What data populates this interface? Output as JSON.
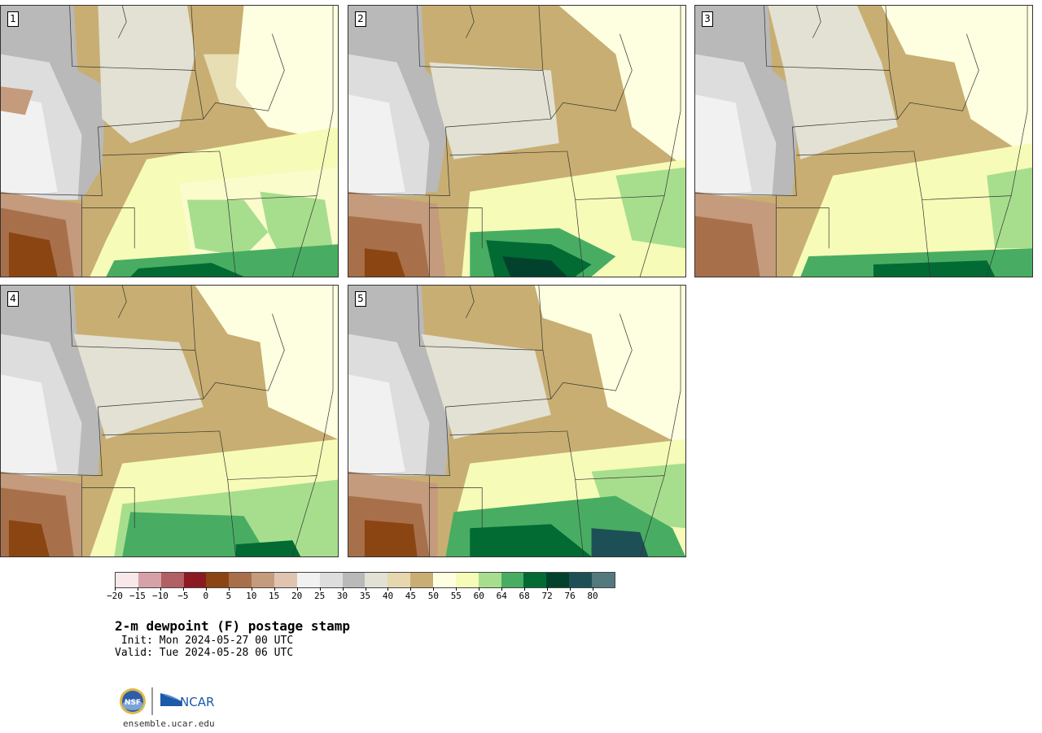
{
  "panels": [
    {
      "label": "1"
    },
    {
      "label": "2"
    },
    {
      "label": "3"
    },
    {
      "label": "4"
    },
    {
      "label": "5"
    }
  ],
  "colorbar": {
    "colors": [
      "#f7e8ea",
      "#d6a2a8",
      "#b35f66",
      "#8b1a23",
      "#8b4513",
      "#a8704a",
      "#c49b7c",
      "#e0c4b0",
      "#f1f1f1",
      "#dddddd",
      "#b9b9b9",
      "#e2e1d3",
      "#e6d7ae",
      "#c8ae72",
      "#fefee0",
      "#f7fbb8",
      "#a7de8d",
      "#48ad62",
      "#026b34",
      "#02422c",
      "#1d5056",
      "#52797e"
    ],
    "ticks": [
      "−20",
      "−15",
      "−10",
      "−5",
      "0",
      "5",
      "10",
      "15",
      "20",
      "25",
      "30",
      "35",
      "40",
      "45",
      "50",
      "55",
      "60",
      "64",
      "68",
      "72",
      "76",
      "80"
    ]
  },
  "title": "2-m dewpoint (F) postage stamp",
  "init": " Init: Mon 2024-05-27 00 UTC",
  "valid": "Valid: Tue 2024-05-28 06 UTC",
  "logo": {
    "nsf_text": "NSF",
    "ncar_text": "NCAR"
  },
  "site": "ensemble.ucar.edu"
}
